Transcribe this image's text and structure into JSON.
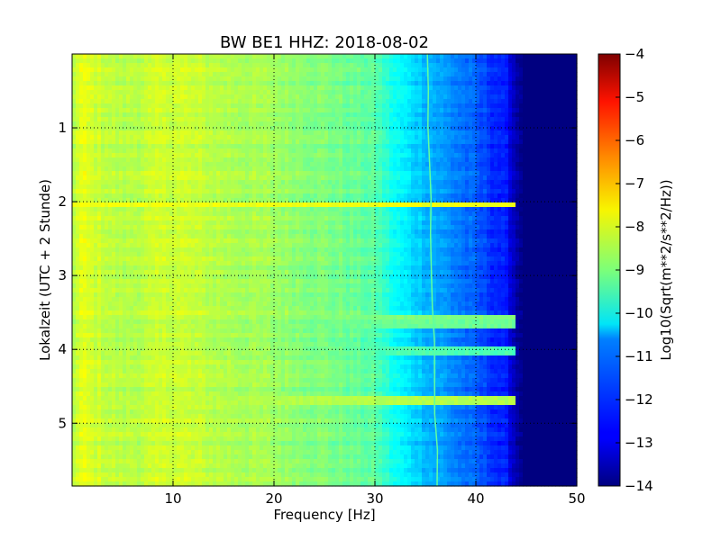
{
  "chart_data": {
    "type": "heatmap",
    "title": "BW BE1 HHZ: 2018-08-02",
    "xlabel": "Frequency [Hz]",
    "ylabel": "Lokalzeit (UTC + 2 Stunde)",
    "xlim": [
      0,
      50
    ],
    "ylim": [
      5.85,
      0
    ],
    "x_ticks": [
      10,
      20,
      30,
      40,
      50
    ],
    "y_ticks": [
      1,
      2,
      3,
      4,
      5
    ],
    "grid": true,
    "colormap": "jet",
    "colorbar": {
      "label": "Log10(Sqrt(m**2/s**2/Hz))",
      "range": [
        -14,
        -4
      ],
      "ticks": [
        -4,
        -5,
        -6,
        -7,
        -8,
        -9,
        -10,
        -11,
        -12,
        -13,
        -14
      ]
    },
    "frequency_profile_hz": [
      0,
      1,
      2,
      5,
      10,
      15,
      20,
      25,
      30,
      32,
      35,
      37,
      40,
      43,
      44,
      45,
      50
    ],
    "frequency_profile_log10": [
      -8.5,
      -8.0,
      -8.2,
      -8.5,
      -8.2,
      -8.5,
      -8.7,
      -9.0,
      -9.4,
      -10.2,
      -10.9,
      -11.3,
      -11.9,
      -12.6,
      -13.6,
      -14.0,
      -14.0
    ],
    "features": [
      {
        "kind": "line",
        "x_start": 35.2,
        "x_end": 36.2,
        "value": -9.3
      },
      {
        "kind": "band",
        "y": 2.05,
        "value": -7.9
      },
      {
        "kind": "band",
        "y": 3.55,
        "value": -9.0
      },
      {
        "kind": "band",
        "y": 3.65,
        "value": -9.2
      },
      {
        "kind": "band",
        "y": 4.7,
        "value": -8.5
      },
      {
        "kind": "band",
        "y": 4.02,
        "value": -9.5
      }
    ]
  }
}
